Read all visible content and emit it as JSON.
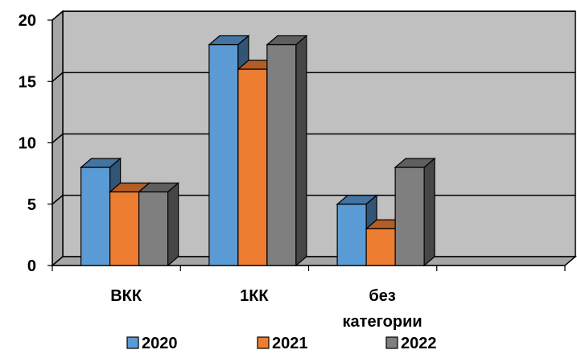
{
  "chart_data": {
    "type": "bar",
    "style": "3d-clustered-column",
    "categories": [
      "ВКК",
      "1КК",
      "без категории",
      ""
    ],
    "series": [
      {
        "name": "2020",
        "values": [
          8,
          18,
          5,
          null
        ],
        "color": "#5b9bd5"
      },
      {
        "name": "2021",
        "values": [
          6,
          16,
          3,
          null
        ],
        "color": "#ed7d31"
      },
      {
        "name": "2022",
        "values": [
          6,
          18,
          8,
          null
        ],
        "color": "#7f7f7f"
      }
    ],
    "y_ticks": [
      "0",
      "5",
      "10",
      "15",
      "20"
    ],
    "ylim": [
      0,
      20
    ],
    "grid": true,
    "wall_color": "#c0c0c0",
    "legend_position": "bottom"
  }
}
